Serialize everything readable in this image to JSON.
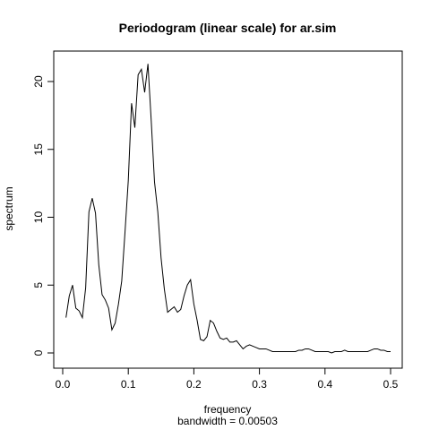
{
  "chart_data": {
    "type": "line",
    "title": "Periodogram (linear scale) for ar.sim",
    "xlabel": "frequency",
    "xsublabel": "bandwidth = 0.00503",
    "ylabel": "spectrum",
    "xlim": [
      0.0,
      0.5
    ],
    "ylim": [
      0,
      21.3
    ],
    "xticks": [
      0.0,
      0.1,
      0.2,
      0.3,
      0.4,
      0.5
    ],
    "xtick_labels": [
      "0.0",
      "0.1",
      "0.2",
      "0.3",
      "0.4",
      "0.5"
    ],
    "yticks": [
      0,
      5,
      10,
      15,
      20
    ],
    "ytick_labels": [
      "0",
      "5",
      "10",
      "15",
      "20"
    ],
    "grid": false,
    "line_color": "#000000",
    "series": [
      {
        "x": [
          0.005,
          0.01,
          0.015,
          0.02,
          0.025,
          0.03,
          0.035,
          0.04,
          0.045,
          0.05,
          0.055,
          0.06,
          0.065,
          0.07,
          0.075,
          0.08,
          0.085,
          0.09,
          0.095,
          0.1,
          0.105,
          0.11,
          0.115,
          0.12,
          0.125,
          0.13,
          0.135,
          0.14,
          0.145,
          0.15,
          0.155,
          0.16,
          0.165,
          0.17,
          0.175,
          0.18,
          0.185,
          0.19,
          0.195,
          0.2,
          0.205,
          0.21,
          0.215,
          0.22,
          0.225,
          0.23,
          0.235,
          0.24,
          0.245,
          0.25,
          0.255,
          0.26,
          0.265,
          0.27,
          0.275,
          0.28,
          0.285,
          0.29,
          0.295,
          0.3,
          0.305,
          0.31,
          0.315,
          0.32,
          0.325,
          0.33,
          0.335,
          0.34,
          0.345,
          0.35,
          0.355,
          0.36,
          0.365,
          0.37,
          0.375,
          0.38,
          0.385,
          0.39,
          0.395,
          0.4,
          0.405,
          0.41,
          0.415,
          0.42,
          0.425,
          0.43,
          0.435,
          0.44,
          0.445,
          0.45,
          0.455,
          0.46,
          0.465,
          0.47,
          0.475,
          0.48,
          0.485,
          0.49,
          0.495,
          0.5
        ],
        "values": [
          2.6,
          4.2,
          5.0,
          3.3,
          3.1,
          2.6,
          4.8,
          10.4,
          11.4,
          10.3,
          6.5,
          4.3,
          3.9,
          3.3,
          1.7,
          2.2,
          3.6,
          5.3,
          8.9,
          12.7,
          18.4,
          16.6,
          20.5,
          20.9,
          19.2,
          21.3,
          17.1,
          12.6,
          10.4,
          7.0,
          4.7,
          3.0,
          3.2,
          3.4,
          3.0,
          3.2,
          4.2,
          5.0,
          5.4,
          3.6,
          2.4,
          1.0,
          0.9,
          1.2,
          2.4,
          2.2,
          1.6,
          1.1,
          1.0,
          1.1,
          0.8,
          0.8,
          0.9,
          0.6,
          0.3,
          0.5,
          0.6,
          0.5,
          0.4,
          0.3,
          0.3,
          0.3,
          0.2,
          0.1,
          0.1,
          0.1,
          0.1,
          0.1,
          0.1,
          0.1,
          0.1,
          0.2,
          0.2,
          0.3,
          0.3,
          0.2,
          0.1,
          0.1,
          0.1,
          0.1,
          0.1,
          0.0,
          0.1,
          0.1,
          0.1,
          0.2,
          0.1,
          0.1,
          0.1,
          0.1,
          0.1,
          0.1,
          0.1,
          0.2,
          0.3,
          0.3,
          0.2,
          0.2,
          0.1,
          0.1
        ]
      }
    ]
  }
}
